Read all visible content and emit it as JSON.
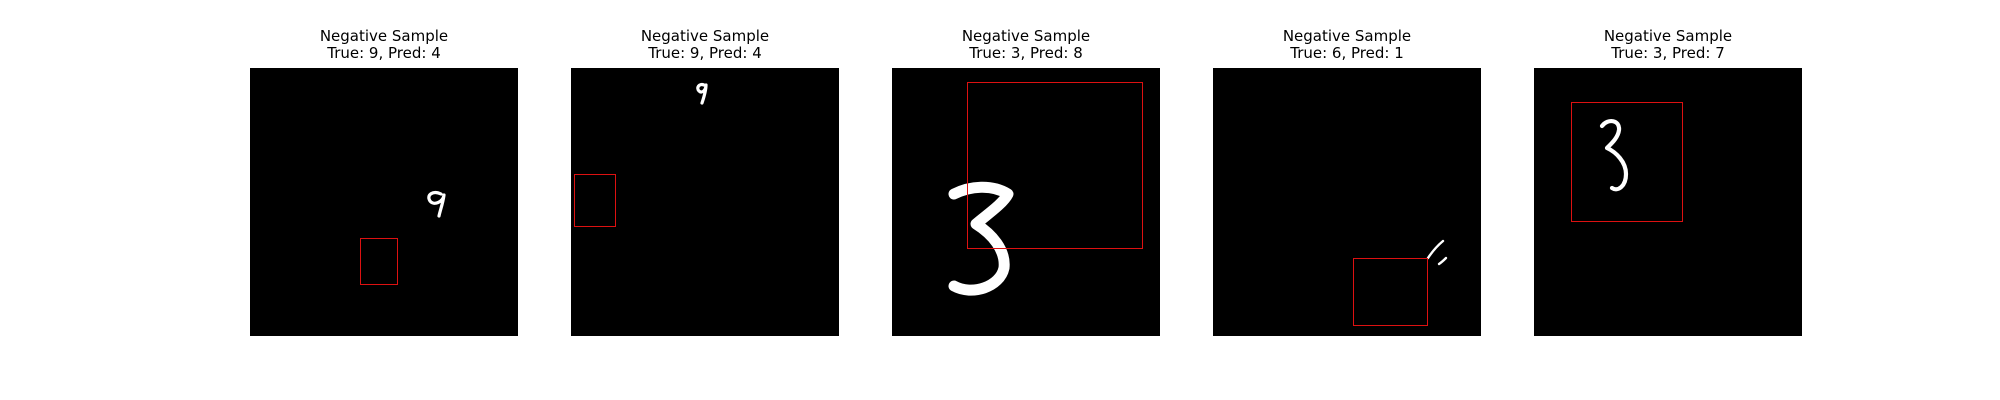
{
  "colors": {
    "background": "#ffffff",
    "image_background": "#000000",
    "digit": "#ffffff",
    "box": "#dd1111"
  },
  "panels": [
    {
      "title": "Negative Sample",
      "subtitle": "True: 9, Pred: 4"
    },
    {
      "title": "Negative Sample",
      "subtitle": "True: 9, Pred: 4"
    },
    {
      "title": "Negative Sample",
      "subtitle": "True: 3, Pred: 8"
    },
    {
      "title": "Negative Sample",
      "subtitle": "True: 6, Pred: 1"
    },
    {
      "title": "Negative Sample",
      "subtitle": "True: 3, Pred: 7"
    }
  ]
}
